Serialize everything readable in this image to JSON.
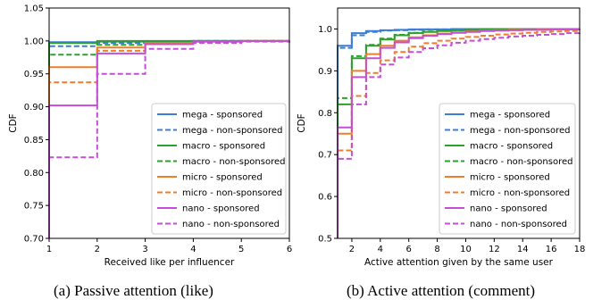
{
  "captions": {
    "a": "(a) Passive attention (like)",
    "b": "(b) Active attention (comment)"
  },
  "series_styles": [
    {
      "name": "mega - sponsored",
      "color": "#3b7dd8",
      "dash": false
    },
    {
      "name": "mega - non-sponsored",
      "color": "#3b7dd8",
      "dash": true
    },
    {
      "name": "macro - sponsored",
      "color": "#2ca02c",
      "dash": false
    },
    {
      "name": "macro - non-sponsored",
      "color": "#2ca02c",
      "dash": true
    },
    {
      "name": "micro - sponsored",
      "color": "#f07d2e",
      "dash": false
    },
    {
      "name": "micro - non-sponsored",
      "color": "#f07d2e",
      "dash": true
    },
    {
      "name": "nano - sponsored",
      "color": "#c34fd6",
      "dash": false
    },
    {
      "name": "nano - non-sponsored",
      "color": "#c34fd6",
      "dash": true
    }
  ],
  "chart_data": [
    {
      "type": "line",
      "step": true,
      "title": "",
      "xlabel": "Received like per influencer",
      "ylabel": "CDF",
      "xlim": [
        1,
        6
      ],
      "ylim": [
        0.7,
        1.05
      ],
      "xticks": [
        "1",
        "2",
        "3",
        "4",
        "5",
        "6"
      ],
      "yticks": [
        "0.70",
        "0.75",
        "0.80",
        "0.85",
        "0.90",
        "0.95",
        "1.00",
        "1.05"
      ],
      "legend_position": "lower-right",
      "grid": false,
      "x": [
        1,
        2,
        3,
        4,
        5,
        6
      ],
      "series": [
        {
          "name": "mega - sponsored",
          "values": [
            0.998,
            0.999,
            0.999,
            1.0,
            1.0,
            1.0
          ]
        },
        {
          "name": "mega - non-sponsored",
          "values": [
            0.992,
            0.997,
            0.999,
            1.0,
            1.0,
            1.0
          ]
        },
        {
          "name": "macro - sponsored",
          "values": [
            0.997,
            1.0,
            1.0,
            1.0,
            1.0,
            1.0
          ]
        },
        {
          "name": "macro - non-sponsored",
          "values": [
            0.979,
            0.994,
            0.999,
            1.0,
            1.0,
            1.0
          ]
        },
        {
          "name": "micro - sponsored",
          "values": [
            0.96,
            0.99,
            0.997,
            0.999,
            1.0,
            1.0
          ]
        },
        {
          "name": "micro - non-sponsored",
          "values": [
            0.937,
            0.985,
            0.996,
            0.999,
            1.0,
            1.0
          ]
        },
        {
          "name": "nano - sponsored",
          "values": [
            0.902,
            0.981,
            0.995,
            0.999,
            1.0,
            1.0
          ]
        },
        {
          "name": "nano - non-sponsored",
          "values": [
            0.823,
            0.95,
            0.988,
            0.997,
            0.999,
            1.0
          ]
        }
      ]
    },
    {
      "type": "line",
      "step": true,
      "title": "",
      "xlabel": "Active attention given by the same user",
      "ylabel": "CDF",
      "xlim": [
        1,
        18
      ],
      "ylim": [
        0.5,
        1.05
      ],
      "xticks": [
        "2",
        "4",
        "6",
        "8",
        "10",
        "12",
        "14",
        "16",
        "18"
      ],
      "yticks": [
        "0.5",
        "0.6",
        "0.7",
        "0.8",
        "0.9",
        "1.0"
      ],
      "legend_position": "lower-right",
      "grid": false,
      "x": [
        1,
        2,
        3,
        4,
        5,
        6,
        7,
        8,
        9,
        10,
        11,
        12,
        13,
        14,
        15,
        16,
        17,
        18
      ],
      "series": [
        {
          "name": "mega - sponsored",
          "values": [
            0.96,
            0.99,
            0.995,
            0.997,
            0.998,
            0.999,
            0.999,
            0.999,
            1.0,
            1.0,
            1.0,
            1.0,
            1.0,
            1.0,
            1.0,
            1.0,
            1.0,
            1.0
          ]
        },
        {
          "name": "mega - non-sponsored",
          "values": [
            0.955,
            0.985,
            0.993,
            0.996,
            0.997,
            0.998,
            0.999,
            0.999,
            1.0,
            1.0,
            1.0,
            1.0,
            1.0,
            1.0,
            1.0,
            1.0,
            1.0,
            1.0
          ]
        },
        {
          "name": "macro - sponsored",
          "values": [
            0.82,
            0.93,
            0.96,
            0.975,
            0.985,
            0.99,
            0.993,
            0.995,
            0.997,
            0.998,
            0.999,
            0.999,
            0.999,
            1.0,
            1.0,
            1.0,
            1.0,
            1.0
          ]
        },
        {
          "name": "macro - non-sponsored",
          "values": [
            0.835,
            0.935,
            0.962,
            0.977,
            0.986,
            0.991,
            0.994,
            0.996,
            0.997,
            0.998,
            0.999,
            0.999,
            1.0,
            1.0,
            1.0,
            1.0,
            1.0,
            1.0
          ]
        },
        {
          "name": "micro - sponsored",
          "values": [
            0.75,
            0.9,
            0.94,
            0.96,
            0.972,
            0.98,
            0.985,
            0.989,
            0.992,
            0.994,
            0.996,
            0.997,
            0.998,
            0.998,
            0.999,
            0.999,
            0.999,
            1.0
          ]
        },
        {
          "name": "micro - non-sponsored",
          "values": [
            0.71,
            0.84,
            0.895,
            0.925,
            0.945,
            0.958,
            0.966,
            0.972,
            0.977,
            0.981,
            0.984,
            0.987,
            0.989,
            0.991,
            0.993,
            0.994,
            0.995,
            0.996
          ]
        },
        {
          "name": "nano - sponsored",
          "values": [
            0.765,
            0.885,
            0.93,
            0.955,
            0.968,
            0.978,
            0.984,
            0.988,
            0.991,
            0.993,
            0.995,
            0.996,
            0.997,
            0.998,
            0.998,
            0.999,
            0.999,
            1.0
          ]
        },
        {
          "name": "nano - non-sponsored",
          "values": [
            0.69,
            0.82,
            0.885,
            0.915,
            0.932,
            0.945,
            0.954,
            0.961,
            0.967,
            0.972,
            0.976,
            0.979,
            0.982,
            0.984,
            0.986,
            0.988,
            0.99,
            0.991
          ]
        }
      ]
    }
  ]
}
